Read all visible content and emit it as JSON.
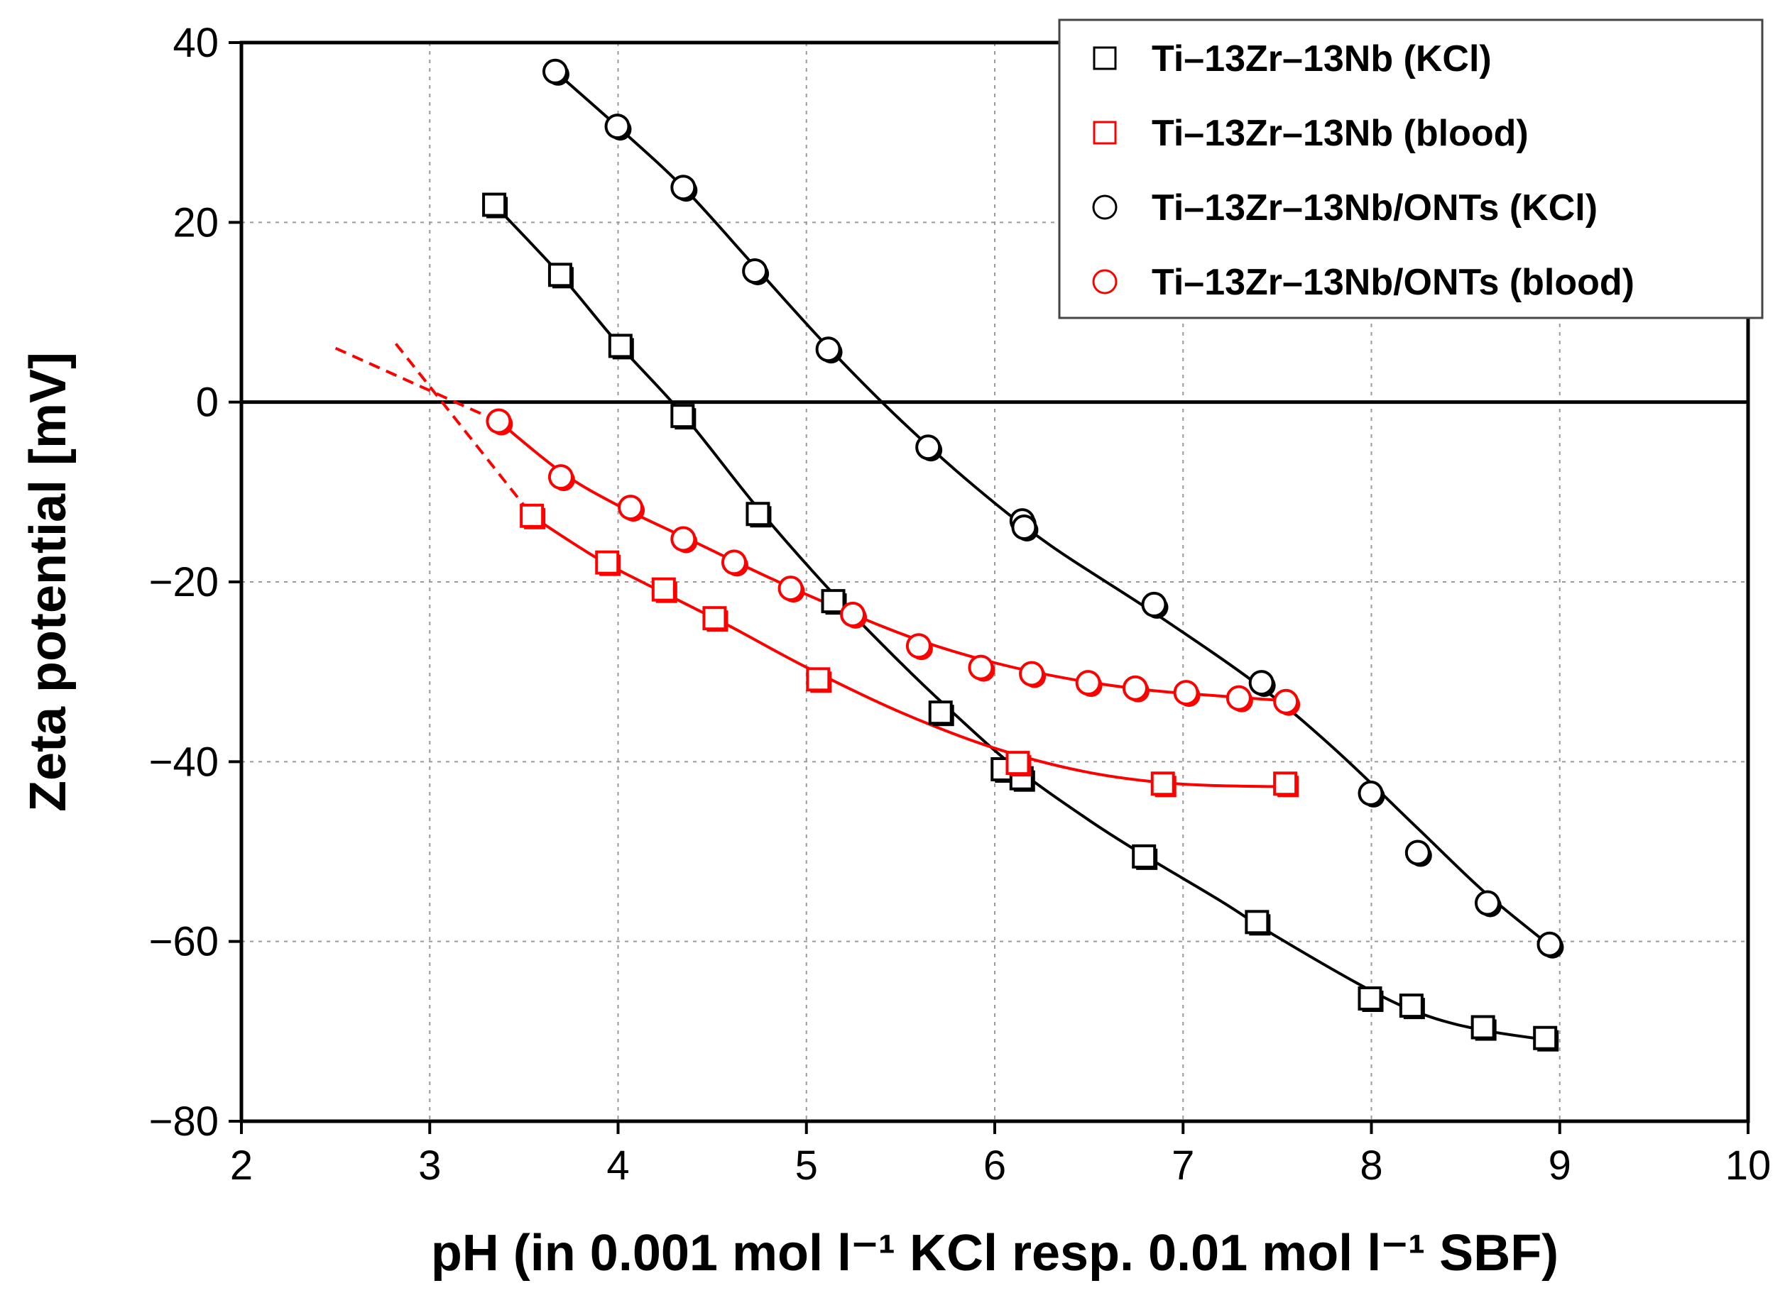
{
  "chart_data": {
    "type": "scatter",
    "title": "",
    "xlabel": "pH (in 0.001 mol l⁻¹ KCl resp. 0.01 mol l⁻¹ SBF)",
    "ylabel": "Zeta potential [mV]",
    "xlim": [
      2,
      10
    ],
    "ylim": [
      -80,
      40
    ],
    "xticks": [
      2,
      3,
      4,
      5,
      6,
      7,
      8,
      9,
      10
    ],
    "yticks": [
      40,
      20,
      0,
      -20,
      -40,
      -60,
      -80
    ],
    "ytick_labels": [
      "40",
      "20",
      "0",
      "−20",
      "−40",
      "−60",
      "−80"
    ],
    "grid": true,
    "zero_line": true,
    "legend_position": "top-right",
    "series": [
      {
        "name": "Ti–13Zr–13Nb (KCl)",
        "marker": "square",
        "color": "#000000",
        "points": [
          [
            3.35,
            21.8
          ],
          [
            3.7,
            14.0
          ],
          [
            4.02,
            6.1
          ],
          [
            4.35,
            -1.7
          ],
          [
            4.75,
            -12.6
          ],
          [
            5.15,
            -22.3
          ],
          [
            5.72,
            -34.7
          ],
          [
            6.05,
            -41.0
          ],
          [
            6.15,
            -42.0
          ],
          [
            6.8,
            -50.7
          ],
          [
            7.4,
            -58.0
          ],
          [
            8.0,
            -66.5
          ],
          [
            8.22,
            -67.3
          ],
          [
            8.6,
            -69.7
          ],
          [
            8.93,
            -70.9
          ]
        ],
        "fit": [
          [
            3.35,
            21.8
          ],
          [
            3.7,
            14.0
          ],
          [
            4.0,
            6.5
          ],
          [
            4.35,
            -1.5
          ],
          [
            4.75,
            -12.0
          ],
          [
            5.15,
            -21.5
          ],
          [
            5.5,
            -29.0
          ],
          [
            5.75,
            -34.0
          ],
          [
            6.1,
            -40.5
          ],
          [
            6.5,
            -46.5
          ],
          [
            6.8,
            -50.5
          ],
          [
            7.2,
            -55.5
          ],
          [
            7.5,
            -59.5
          ],
          [
            8.0,
            -65.5
          ],
          [
            8.3,
            -68.3
          ],
          [
            8.6,
            -69.9
          ],
          [
            8.95,
            -71.0
          ]
        ]
      },
      {
        "name": "Ti–13Zr–13Nb (blood)",
        "marker": "square",
        "color": "#ff0000",
        "points": [
          [
            3.55,
            -12.8
          ],
          [
            3.95,
            -18.0
          ],
          [
            4.25,
            -21.0
          ],
          [
            4.52,
            -24.2
          ],
          [
            5.07,
            -31.0
          ],
          [
            6.13,
            -40.3
          ],
          [
            6.9,
            -42.6
          ],
          [
            7.55,
            -42.6
          ]
        ],
        "fit": [
          [
            3.55,
            -12.8
          ],
          [
            3.9,
            -17.5
          ],
          [
            4.25,
            -21.3
          ],
          [
            4.6,
            -25.0
          ],
          [
            5.0,
            -29.5
          ],
          [
            5.5,
            -34.5
          ],
          [
            6.0,
            -38.5
          ],
          [
            6.5,
            -41.2
          ],
          [
            7.0,
            -42.5
          ],
          [
            7.6,
            -42.8
          ]
        ],
        "extrapolation": [
          [
            2.82,
            6.5
          ],
          [
            3.55,
            -12.8
          ]
        ]
      },
      {
        "name": "Ti–13Zr–13Nb/ONTs (KCl)",
        "marker": "circle",
        "color": "#000000",
        "points": [
          [
            3.67,
            36.7
          ],
          [
            4.0,
            30.6
          ],
          [
            4.35,
            23.8
          ],
          [
            4.73,
            14.5
          ],
          [
            5.12,
            5.8
          ],
          [
            5.65,
            -5.1
          ],
          [
            6.15,
            -13.3
          ],
          [
            6.16,
            -14.0
          ],
          [
            6.85,
            -22.6
          ],
          [
            7.42,
            -31.3
          ],
          [
            8.0,
            -43.6
          ],
          [
            8.25,
            -50.2
          ],
          [
            8.62,
            -55.8
          ],
          [
            8.95,
            -60.4
          ]
        ],
        "fit": [
          [
            3.67,
            36.7
          ],
          [
            4.0,
            30.6
          ],
          [
            4.35,
            23.8
          ],
          [
            4.73,
            15.0
          ],
          [
            5.12,
            6.0
          ],
          [
            5.5,
            -2.0
          ],
          [
            5.9,
            -9.5
          ],
          [
            6.3,
            -16.0
          ],
          [
            6.85,
            -23.5
          ],
          [
            7.4,
            -31.5
          ],
          [
            7.8,
            -38.5
          ],
          [
            8.25,
            -47.5
          ],
          [
            8.6,
            -54.5
          ],
          [
            8.95,
            -60.5
          ]
        ]
      },
      {
        "name": "Ti–13Zr–13Nb/ONTs (blood)",
        "marker": "circle",
        "color": "#ff0000",
        "points": [
          [
            3.37,
            -2.2
          ],
          [
            3.7,
            -8.4
          ],
          [
            4.07,
            -11.8
          ],
          [
            4.35,
            -15.3
          ],
          [
            4.62,
            -17.9
          ],
          [
            4.92,
            -20.8
          ],
          [
            5.25,
            -23.7
          ],
          [
            5.6,
            -27.2
          ],
          [
            5.93,
            -29.6
          ],
          [
            6.2,
            -30.3
          ],
          [
            6.5,
            -31.3
          ],
          [
            6.75,
            -31.9
          ],
          [
            7.02,
            -32.4
          ],
          [
            7.3,
            -33.0
          ],
          [
            7.55,
            -33.4
          ]
        ],
        "fit": [
          [
            3.37,
            -2.2
          ],
          [
            3.7,
            -7.8
          ],
          [
            4.0,
            -11.5
          ],
          [
            4.4,
            -15.5
          ],
          [
            4.8,
            -19.5
          ],
          [
            5.2,
            -23.2
          ],
          [
            5.6,
            -26.5
          ],
          [
            6.0,
            -29.0
          ],
          [
            6.4,
            -30.8
          ],
          [
            6.8,
            -32.0
          ],
          [
            7.2,
            -32.7
          ],
          [
            7.6,
            -33.3
          ]
        ],
        "extrapolation": [
          [
            2.5,
            6.0
          ],
          [
            3.37,
            -2.2
          ]
        ]
      }
    ]
  }
}
